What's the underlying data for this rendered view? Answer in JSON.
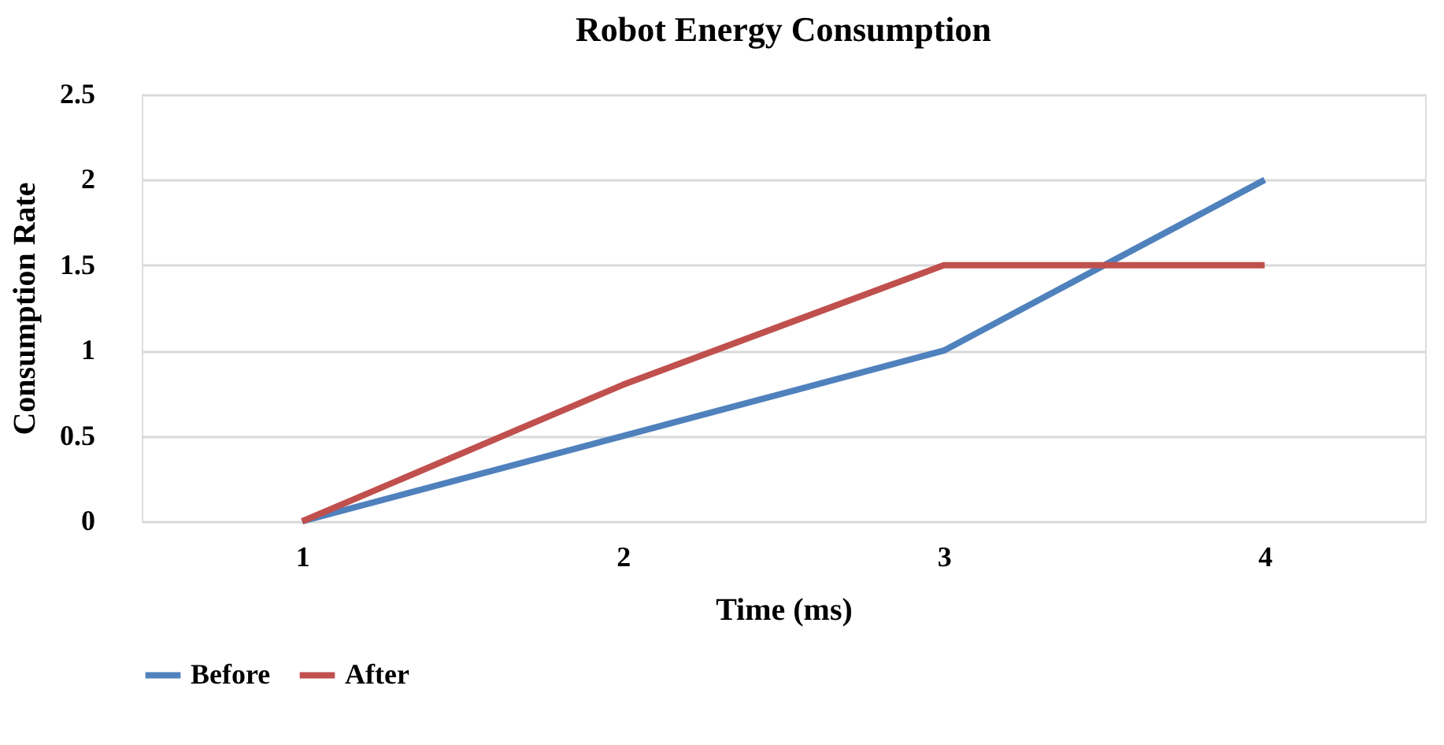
{
  "chart_data": {
    "type": "line",
    "title": "Robot Energy Consumption",
    "xlabel": "Time (ms)",
    "ylabel": "Consumption Rate",
    "categories": [
      "1",
      "2",
      "3",
      "4"
    ],
    "series": [
      {
        "name": "Before",
        "color": "#4f81bd",
        "values": [
          0,
          0.5,
          1,
          2
        ]
      },
      {
        "name": "After",
        "color": "#c0504d",
        "values": [
          0,
          0.8,
          1.5,
          1.5
        ]
      }
    ],
    "ylim": [
      0,
      2.5
    ],
    "yticks": [
      0,
      0.5,
      1,
      1.5,
      2,
      2.5
    ],
    "grid": "y",
    "legend": "bottom",
    "marker": "none",
    "line_style": "solid"
  }
}
